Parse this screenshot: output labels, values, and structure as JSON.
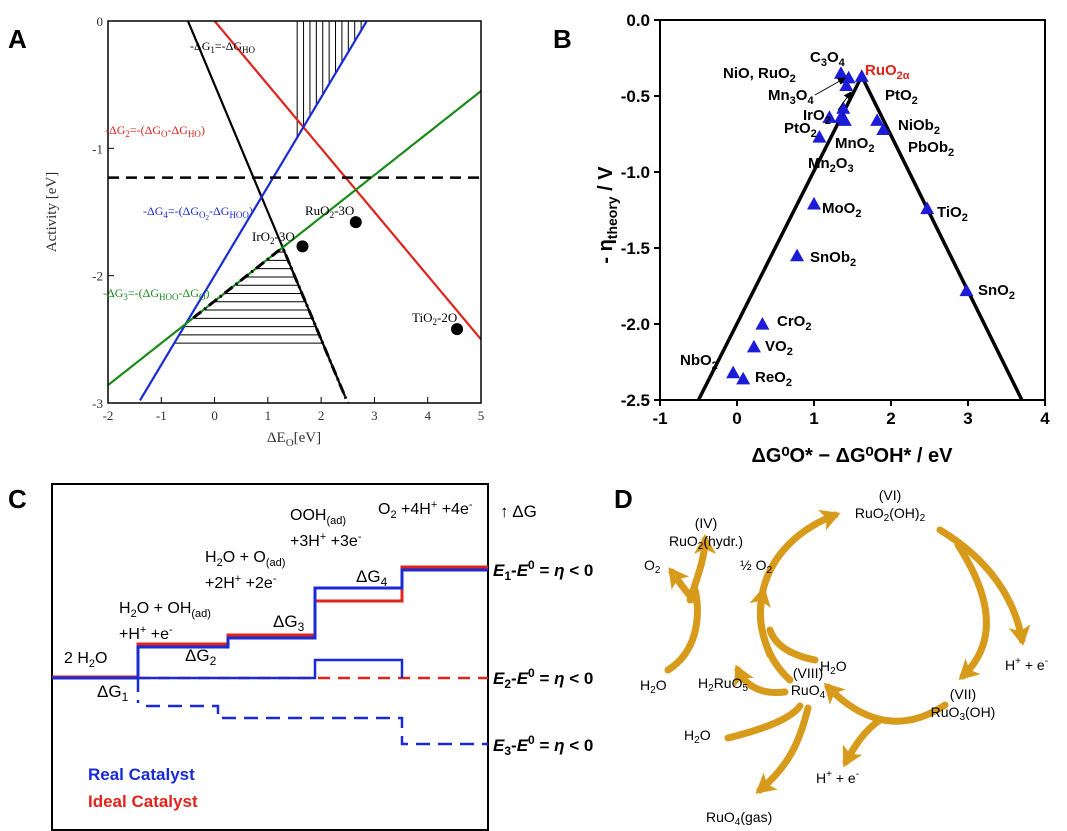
{
  "panels": {
    "a": {
      "letter": "A",
      "ylabel": "Activity [eV]",
      "xlabel_main": "ΔE",
      "xlabel_sub": "O",
      "xlabel_unit": "[eV]",
      "dashed_line_y": -1.23,
      "lines": [
        {
          "name": "line-g1",
          "label": "-ΔG1=-ΔGHO",
          "color": "#000000",
          "slope": -1.0,
          "intercept": -0.5
        },
        {
          "name": "line-g2",
          "label": "-ΔG2=-(ΔGO-ΔGHO)",
          "color": "#e0231b",
          "slope": -0.5,
          "intercept": 0.0
        },
        {
          "name": "line-g4",
          "label": "-ΔG4=-(ΔGO2-ΔGHOO)",
          "color": "#1a2bd6",
          "slope": 0.7,
          "intercept": -2.0
        },
        {
          "name": "line-g3",
          "label": "-ΔG3=-(ΔGHOO-ΔGO)",
          "color": "#1a8a1a",
          "slope": 0.33,
          "intercept": -2.2
        }
      ],
      "annotations": {
        "g1": {
          "pre": "-ΔG",
          "sub": "1",
          "post": "=-ΔG",
          "sub2": "HO"
        },
        "g2": {
          "pre": "-ΔG",
          "sub": "2",
          "post": "=-(ΔG",
          "sub2": "O",
          "post2": "-ΔG",
          "sub3": "HO",
          "end": ")"
        },
        "g4": {
          "pre": "-ΔG",
          "sub": "4",
          "post": "=-(ΔG",
          "sub2": "O",
          "sub2b": "2",
          "post2": "-ΔG",
          "sub3": "HOO",
          "end": ")"
        },
        "g3": {
          "pre": "-ΔG",
          "sub": "3",
          "post": "=-(ΔG",
          "sub2": "HOO",
          "post2": "-ΔG",
          "sub3": "O",
          "end": ")"
        }
      },
      "points": [
        {
          "name": "ruo2-3o",
          "pre": "RuO",
          "sub": "2",
          "post": "-3O",
          "x": 2.65,
          "y": -1.58
        },
        {
          "name": "iro2-3o",
          "pre": "IrO",
          "sub": "2",
          "post": "-3O",
          "x": 1.65,
          "y": -1.77
        },
        {
          "name": "tio2-2o",
          "pre": "TiO",
          "sub": "2",
          "post": "-2O",
          "x": 4.55,
          "y": -2.42
        }
      ],
      "xlim": [
        -2,
        5
      ],
      "ylim": [
        -3,
        0
      ],
      "xticks": [
        "-2",
        "-1",
        "0",
        "1",
        "2",
        "3",
        "4",
        "5"
      ],
      "yticks": [
        "0",
        "-1",
        "-2",
        "-3"
      ]
    },
    "b": {
      "letter": "B",
      "ylabel_pre": "- η",
      "ylabel_sub": "theory",
      "ylabel_post": " / V",
      "xlabel": "ΔG⁰O* − ΔG⁰OH* / eV",
      "xlim": [
        -1,
        4
      ],
      "ylim": [
        -2.5,
        0.0
      ],
      "xticks": [
        "-1",
        "0",
        "1",
        "2",
        "3",
        "4"
      ],
      "yticks": [
        "0.0",
        "-0.5",
        "-1.0",
        "-1.5",
        "-2.0",
        "-2.5"
      ],
      "marker_color": "#1c1cd8",
      "points": [
        {
          "x": 1.35,
          "y": -0.35
        },
        {
          "x": 1.45,
          "y": -0.38
        },
        {
          "x": 1.62,
          "y": -0.37
        },
        {
          "x": 1.42,
          "y": -0.43
        },
        {
          "x": 1.38,
          "y": -0.58
        },
        {
          "x": 1.35,
          "y": -0.64
        },
        {
          "x": 1.2,
          "y": -0.64
        },
        {
          "x": 1.4,
          "y": -0.66
        },
        {
          "x": 1.82,
          "y": -0.66
        },
        {
          "x": 1.9,
          "y": -0.72
        },
        {
          "x": 1.07,
          "y": -0.77
        },
        {
          "x": 1.0,
          "y": -1.21
        },
        {
          "x": 2.47,
          "y": -1.24
        },
        {
          "x": 0.78,
          "y": -1.55
        },
        {
          "x": 2.98,
          "y": -1.78
        },
        {
          "x": 0.33,
          "y": -2.0
        },
        {
          "x": 0.22,
          "y": -2.15
        },
        {
          "x": -0.05,
          "y": -2.32
        },
        {
          "x": 0.08,
          "y": -2.36
        }
      ],
      "labels": [
        {
          "name": "label-c3o4",
          "pre": "C",
          "sub": "3",
          "post": "O",
          "sub2": "4"
        },
        {
          "name": "label-nio-ruo2",
          "pre": "NiO, RuO",
          "sub": "2"
        },
        {
          "name": "label-ruo2a",
          "pre": "RuO",
          "sub": "2α",
          "color": "#e0231b"
        },
        {
          "name": "label-mn3o4",
          "pre": "Mn",
          "sub": "3",
          "post": "O",
          "sub2": "4"
        },
        {
          "name": "label-pto2-top",
          "pre": "PtO",
          "sub": "2"
        },
        {
          "name": "label-iro2",
          "pre": "IrO",
          "sub": "2"
        },
        {
          "name": "label-pto2",
          "pre": "PtO",
          "sub": "2"
        },
        {
          "name": "label-nio2",
          "pre": "NiOb",
          "sub": "2"
        },
        {
          "name": "label-mno2",
          "pre": "MnO",
          "sub": "2"
        },
        {
          "name": "label-pbo2",
          "pre": "PbOb",
          "sub": "2"
        },
        {
          "name": "label-mn2o3",
          "pre": "Mn",
          "sub": "2",
          "post": "O",
          "sub2": "3"
        },
        {
          "name": "label-moo2",
          "pre": "MoO",
          "sub": "2"
        },
        {
          "name": "label-tio2",
          "pre": "TiO",
          "sub": "2"
        },
        {
          "name": "label-sno2b",
          "pre": "SnOb",
          "sub": "2"
        },
        {
          "name": "label-sno2",
          "pre": "SnO",
          "sub": "2"
        },
        {
          "name": "label-cro2",
          "pre": "CrO",
          "sub": "2"
        },
        {
          "name": "label-vo2",
          "pre": "VO",
          "sub": "2"
        },
        {
          "name": "label-nbo2",
          "pre": "NbO",
          "sub": "2"
        },
        {
          "name": "label-reo2",
          "pre": "ReO",
          "sub": "2"
        }
      ]
    },
    "c": {
      "letter": "C",
      "states": {
        "s0": "2 H",
        "s0_sub": "2",
        "s0_post": "O",
        "s1_a": "H",
        "s1_a_sub": "2",
        "s1_a_post": "O + OH",
        "s1_a_sub2": "(ad)",
        "s1_b": "+H",
        "s1_b_sup": "+",
        "s1_b_post": " +e",
        "s1_b_sup2": "-",
        "s2_a": "H",
        "s2_a_sub": "2",
        "s2_a_post": "O + O",
        "s2_a_sub2": "(ad)",
        "s2_b": "+2H",
        "s2_b_sup": "+",
        "s2_b_post": " +2e",
        "s2_b_sup2": "-",
        "s3_a": "OOH",
        "s3_a_sub": "(ad)",
        "s3_b": "+3H",
        "s3_b_sup": "+",
        "s3_b_post": " +3e",
        "s3_b_sup2": "-",
        "s4": "O",
        "s4_sub": "2",
        "s4_post": " +4H",
        "s4_sup": "+",
        "s4_post2": " +4e",
        "s4_sup2": "-"
      },
      "deltas": [
        {
          "name": "delta-g1",
          "base": "ΔG",
          "sub": "1"
        },
        {
          "name": "delta-g2",
          "base": "ΔG",
          "sub": "2"
        },
        {
          "name": "delta-g3",
          "base": "ΔG",
          "sub": "3"
        },
        {
          "name": "delta-g4",
          "base": "ΔG",
          "sub": "4"
        }
      ],
      "arrow_label": "↑ ΔG",
      "energies": [
        {
          "name": "e1",
          "E": "E",
          "sub": "1",
          "rest": "-",
          "E0": "E",
          "sup": "0",
          "tail": " = ",
          "eta": "η",
          "end": " < 0"
        },
        {
          "name": "e2",
          "E": "E",
          "sub": "2",
          "rest": "-",
          "E0": "E",
          "sup": "0",
          "tail": " = ",
          "eta": "η",
          "end": " < 0"
        },
        {
          "name": "e3",
          "E": "E",
          "sub": "3",
          "rest": "-",
          "E0": "E",
          "sup": "0",
          "tail": " = ",
          "eta": "η",
          "end": " < 0"
        }
      ],
      "legend": [
        {
          "name": "legend-real",
          "label": "Real Catalyst",
          "color": "#1a2bd6"
        },
        {
          "name": "legend-ideal",
          "label": "Ideal Catalyst",
          "color": "#e0231b"
        }
      ]
    },
    "d": {
      "letter": "D",
      "arrow_color": "#d79a1b",
      "labels": {
        "iv_ox": "(IV)",
        "iv_pre": "RuO",
        "iv_sub": "2",
        "iv_post": "(hydr.)",
        "vi_ox": "(VI)",
        "vi_pre": "RuO",
        "vi_sub": "2",
        "vi_post": "(OH)",
        "vi_sub2": "2",
        "o2_left_pre": "O",
        "o2_left_sub": "2",
        "half_o2_pre": "½ O",
        "half_o2_sub": "2",
        "h2o_mid": "H",
        "h2o_mid_sub": "2",
        "h2o_mid_post": "O",
        "h2o_left": "H",
        "h2o_left_sub": "2",
        "h2o_left_post": "O",
        "h2ruo5_pre": "H",
        "h2ruo5_sub": "2",
        "h2ruo5_post": "RuO",
        "h2ruo5_sub2": "5",
        "viii_ox": "(VIII)",
        "viii_pre": "RuO",
        "viii_sub": "4",
        "vii_ox": "(VII)",
        "vii_pre": "RuO",
        "vii_sub": "3",
        "vii_post": "(OH)",
        "h2o_bottom": "H",
        "h2o_bottom_sub": "2",
        "h2o_bottom_post": "O",
        "he_right_pre": "H",
        "he_right_sup": "+",
        "he_right_post": " + e",
        "he_right_sup2": "-",
        "he_bottom_pre": "H",
        "he_bottom_sup": "+",
        "he_bottom_post": " + e",
        "he_bottom_sup2": "-",
        "ruo4gas_pre": "RuO",
        "ruo4gas_sub": "4",
        "ruo4gas_post": "(gas)"
      }
    }
  }
}
